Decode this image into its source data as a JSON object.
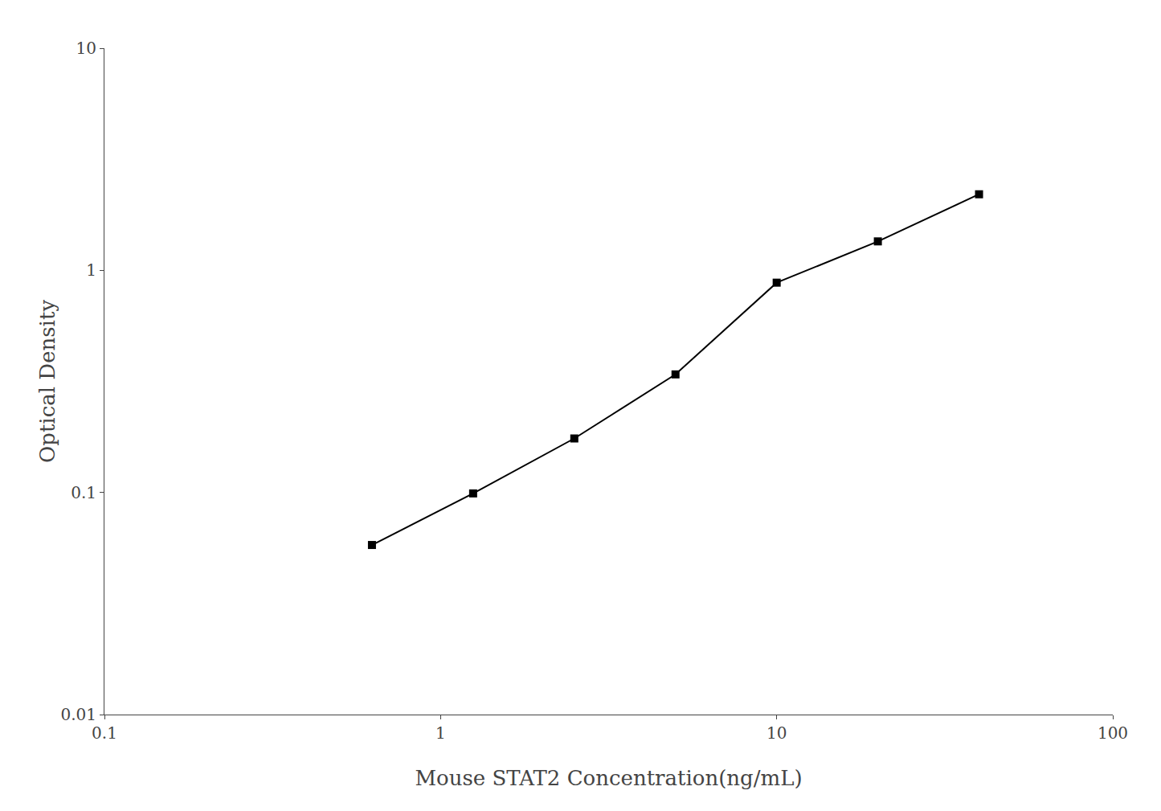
{
  "chart_data": {
    "type": "line",
    "x": [
      0.625,
      1.25,
      2.5,
      5.0,
      10.0,
      20.0,
      40.0
    ],
    "values": [
      0.058,
      0.099,
      0.175,
      0.34,
      0.88,
      1.35,
      2.2
    ],
    "xlabel": "Mouse STAT2 Concentration(ng/mL)",
    "ylabel": "Optical Density",
    "xlim": [
      0.1,
      100
    ],
    "ylim": [
      0.01,
      10
    ],
    "xticks": [
      0.1,
      1,
      10,
      100
    ],
    "yticks": [
      0.01,
      0.1,
      1,
      10
    ],
    "log": true,
    "grid": false,
    "color": "#000000",
    "marker": "square",
    "line_style": "solid"
  }
}
